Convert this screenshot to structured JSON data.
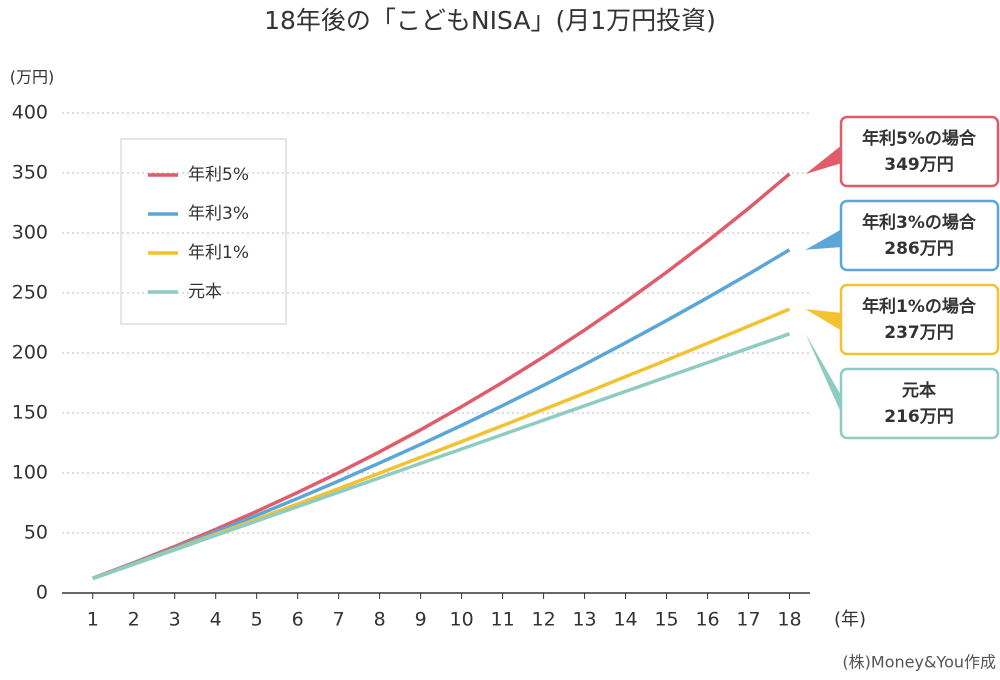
{
  "chart_data": {
    "type": "line",
    "title": "18年後の「こどもNISA」(月1万円投資)",
    "y_unit": "(万円)",
    "x_unit": "(年)",
    "source": "(株)Money&You作成",
    "x": [
      1,
      2,
      3,
      4,
      5,
      6,
      7,
      8,
      9,
      10,
      11,
      12,
      13,
      14,
      15,
      16,
      17,
      18
    ],
    "xlim": [
      0.25,
      18.5
    ],
    "xticks": [
      1,
      2,
      3,
      4,
      5,
      6,
      7,
      8,
      9,
      10,
      11,
      12,
      13,
      14,
      15,
      16,
      17,
      18
    ],
    "ylim": [
      0,
      400
    ],
    "yticks": [
      0,
      50,
      100,
      150,
      200,
      250,
      300,
      350,
      400
    ],
    "grid": true,
    "series": [
      {
        "name": "年利5%",
        "color": "#e05c6b",
        "values": [
          12.3,
          25.2,
          38.8,
          53.0,
          68.0,
          83.8,
          100.3,
          117.7,
          136.0,
          155.3,
          175.5,
          196.8,
          219.1,
          242.6,
          267.3,
          293.2,
          320.5,
          349.2
        ],
        "callout": "年利5%の場合",
        "value_label": "349万円"
      },
      {
        "name": "年利3%",
        "color": "#5ba6d9",
        "values": [
          12.2,
          24.7,
          37.6,
          50.9,
          64.7,
          78.8,
          93.3,
          108.4,
          123.8,
          139.7,
          156.2,
          173.1,
          190.5,
          208.5,
          227.0,
          246.1,
          265.7,
          286.0
        ],
        "callout": "年利3%の場合",
        "value_label": "286万円"
      },
      {
        "name": "年利1%",
        "color": "#f2c230",
        "values": [
          12.1,
          24.2,
          36.5,
          49.0,
          61.5,
          74.2,
          87.0,
          99.9,
          113.0,
          126.2,
          139.5,
          152.9,
          166.5,
          180.3,
          194.1,
          208.1,
          222.3,
          236.6
        ],
        "callout": "年利1%の場合",
        "value_label": "237万円"
      },
      {
        "name": "元本",
        "color": "#8ecbc1",
        "values": [
          12,
          24,
          36,
          48,
          60,
          72,
          84,
          96,
          108,
          120,
          132,
          144,
          156,
          168,
          180,
          192,
          204,
          216
        ],
        "callout": "元本",
        "value_label": "216万円"
      }
    ]
  }
}
